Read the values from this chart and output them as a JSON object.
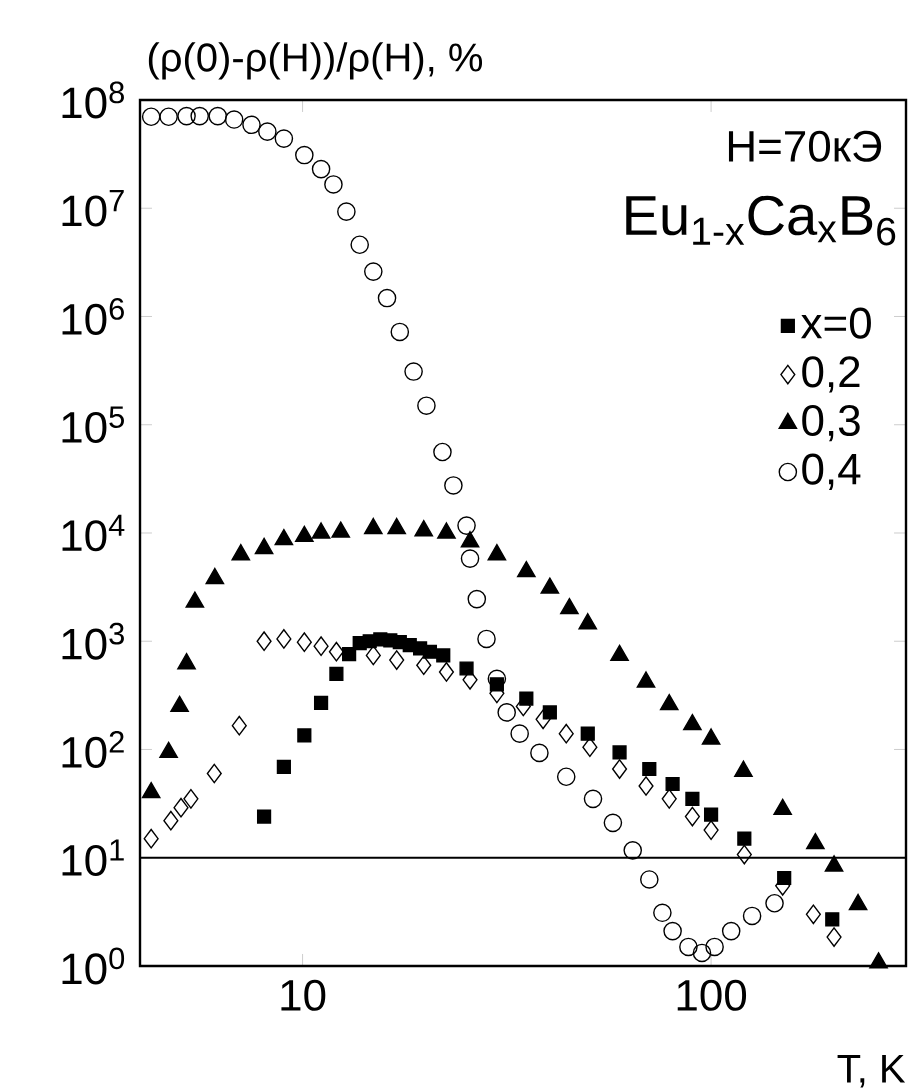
{
  "chart_data": {
    "type": "scatter",
    "ylabel": "(ρ(0)-ρ(H))/ρ(H),  %",
    "xlabel": "T, K",
    "legend_title": "Eu$_{1-x}$Ca$_{x}$B$_{6}$",
    "annotations": [
      "H=70кЭ"
    ],
    "log": "xy",
    "grid": false,
    "legend": "top right",
    "xlim": [
      4,
      300
    ],
    "xticks": [
      10,
      100
    ],
    "ylim": [
      1,
      100000000
    ],
    "yticks": [
      {
        "value": 1,
        "label": "10$^{0}$"
      },
      {
        "value": 10,
        "label": "10$^{1}$"
      },
      {
        "value": 100,
        "label": "10$^{2}$"
      },
      {
        "value": 1000,
        "label": "10$^{3}$"
      },
      {
        "value": 10000,
        "label": "10$^{4}$"
      },
      {
        "value": 100000,
        "label": "10$^{5}$"
      },
      {
        "value": 1000000,
        "label": "10$^{6}$"
      },
      {
        "value": 10000000,
        "label": "10$^{7}$"
      },
      {
        "value": 100000000,
        "label": "10$^{8}$"
      }
    ],
    "ref_lines": [
      {
        "axis": "y",
        "value": 10,
        "label": null,
        "color": "#000000"
      }
    ],
    "series": [
      {
        "name": "x=0",
        "color": "#000000",
        "marker": "square",
        "x": [
          8.05,
          9.0,
          10.1,
          11.1,
          12.1,
          13.0,
          13.8,
          14.6,
          15.5,
          16.4,
          17.3,
          18.3,
          19.4,
          20.5,
          22.1,
          25.2,
          29.9,
          35.3,
          40.3,
          49.9,
          59.7,
          70.6,
          80.5,
          90,
          100,
          120.6,
          151,
          198
        ],
        "values": [
          24,
          69,
          135,
          270,
          500,
          760,
          960,
          1000,
          1040,
          1020,
          980,
          920,
          860,
          800,
          740,
          560,
          400,
          295,
          220,
          140,
          94,
          66,
          48,
          35,
          25,
          15,
          6.5,
          2.7
        ]
      },
      {
        "name": "0,2",
        "color": "#000000",
        "marker": "diamond",
        "x": [
          4.26,
          4.76,
          5.04,
          5.33,
          6.08,
          7.0,
          8.05,
          9.0,
          10.1,
          11.1,
          12.1,
          13.3,
          14.9,
          17.0,
          19.8,
          22.5,
          25.7,
          29.9,
          34.7,
          38.8,
          44.2,
          50.5,
          59.7,
          69.3,
          79,
          90,
          100,
          120.6,
          149.7,
          178,
          200
        ],
        "values": [
          15,
          22,
          29,
          35,
          60,
          166,
          1000,
          1050,
          980,
          900,
          800,
          null,
          740,
          670,
          600,
          520,
          440,
          330,
          250,
          190,
          140,
          105,
          66,
          46,
          35,
          24,
          18,
          10.7,
          5.5,
          3.0,
          1.85
        ]
      },
      {
        "name": "0,3",
        "color": "#000000",
        "marker": "triangle",
        "x": [
          4.26,
          4.7,
          5.0,
          5.2,
          5.45,
          6.1,
          7.06,
          8.05,
          9.0,
          10.1,
          11.1,
          12.4,
          14.9,
          17.0,
          19.8,
          22.5,
          25.7,
          29.9,
          35.3,
          40.3,
          45,
          49.9,
          59.7,
          69.3,
          79,
          90,
          100,
          120,
          149.7,
          180,
          200,
          229,
          257
        ],
        "values": [
          40,
          94,
          250,
          620,
          2300,
          3800,
          6300,
          7200,
          8700,
          9300,
          10000,
          10200,
          11000,
          11000,
          10500,
          10000,
          8300,
          6300,
          4400,
          3100,
          2000,
          1450,
          740,
          420,
          260,
          170,
          125,
          63,
          28,
          13.5,
          8.4,
          3.7,
          1.07
        ]
      },
      {
        "name": "0,4",
        "color": "#000000",
        "marker": "circle",
        "x": [
          4.26,
          4.7,
          5.2,
          5.6,
          6.2,
          6.8,
          7.5,
          8.2,
          9.0,
          10.1,
          11.1,
          11.9,
          12.8,
          13.8,
          14.9,
          16.1,
          17.3,
          18.7,
          20.1,
          22,
          23.4,
          25.2,
          25.7,
          26.7,
          28.2,
          29.9,
          31.6,
          34,
          38,
          44.2,
          51.4,
          57.5,
          64.3,
          70.6,
          76,
          80.5,
          88,
          95,
          102,
          112,
          126,
          143
        ],
        "values": [
          70000000,
          70000000,
          71000000,
          71000000,
          71000000,
          66000000,
          59000000,
          51000000,
          44000000,
          31000000,
          23000000,
          16600000,
          9300000,
          4600000,
          2600000,
          1480000,
          720000,
          310000,
          150000,
          56000,
          27500,
          11700,
          5800,
          2450,
          1050,
          450,
          220,
          140,
          93,
          56,
          35,
          21,
          11.7,
          6.3,
          3.1,
          2.1,
          1.5,
          1.32,
          1.5,
          2.1,
          2.9,
          3.8
        ]
      }
    ]
  }
}
